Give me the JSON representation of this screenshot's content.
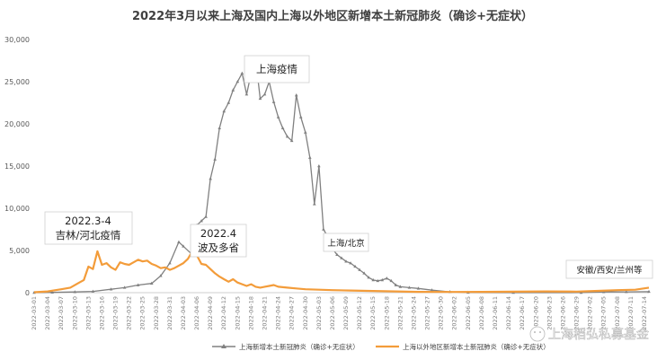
{
  "chart_data": {
    "type": "line",
    "title": "2022年3月以来上海及国内上海以外地区新增本土新冠肺炎（确诊+无症状）",
    "ylim": [
      0,
      30000
    ],
    "yticks": [
      0,
      5000,
      10000,
      15000,
      20000,
      25000,
      30000
    ],
    "ytick_labels": [
      "0",
      "5,000",
      "10,000",
      "15,000",
      "20,000",
      "25,000",
      "30,000"
    ],
    "xtick_labels": [
      "2022-03-01",
      "2022-03-04",
      "2022-03-07",
      "2022-03-10",
      "2022-03-13",
      "2022-03-16",
      "2022-03-19",
      "2022-03-22",
      "2022-03-25",
      "2022-03-28",
      "2022-03-31",
      "2022-04-03",
      "2022-04-06",
      "2022-04-09",
      "2022-04-12",
      "2022-04-15",
      "2022-04-18",
      "2022-04-21",
      "2022-04-24",
      "2022-04-27",
      "2022-04-30",
      "2022-05-03",
      "2022-05-06",
      "2022-05-09",
      "2022-05-12",
      "2022-05-15",
      "2022-05-18",
      "2022-05-21",
      "2022-05-24",
      "2022-05-27",
      "2022-05-30",
      "2022-06-02",
      "2022-06-05",
      "2022-06-08",
      "2022-06-11",
      "2022-06-14",
      "2022-06-17",
      "2022-06-20",
      "2022-06-23",
      "2022-06-26",
      "2022-06-29",
      "2022-07-02",
      "2022-07-05",
      "2022-07-08",
      "2022-07-11",
      "2022-07-14"
    ],
    "x_start": "2022-03-01",
    "x_end": "2022-07-15",
    "grid": false,
    "legend_position": "bottom",
    "series": [
      {
        "name": "上海新增本土新冠肺炎（确诊+无症状）",
        "color": "#808080",
        "points": [
          [
            "2022-03-01",
            5
          ],
          [
            "2022-03-05",
            30
          ],
          [
            "2022-03-10",
            80
          ],
          [
            "2022-03-14",
            150
          ],
          [
            "2022-03-18",
            400
          ],
          [
            "2022-03-21",
            600
          ],
          [
            "2022-03-24",
            900
          ],
          [
            "2022-03-27",
            1100
          ],
          [
            "2022-03-29",
            2000
          ],
          [
            "2022-03-31",
            3500
          ],
          [
            "2022-04-02",
            6000
          ],
          [
            "2022-04-03",
            5500
          ],
          [
            "2022-04-05",
            4500
          ],
          [
            "2022-04-06",
            8000
          ],
          [
            "2022-04-07",
            8500
          ],
          [
            "2022-04-08",
            9000
          ],
          [
            "2022-04-09",
            13500
          ],
          [
            "2022-04-10",
            15800
          ],
          [
            "2022-04-11",
            19500
          ],
          [
            "2022-04-12",
            21500
          ],
          [
            "2022-04-13",
            22500
          ],
          [
            "2022-04-14",
            24000
          ],
          [
            "2022-04-15",
            25000
          ],
          [
            "2022-04-16",
            26000
          ],
          [
            "2022-04-17",
            23500
          ],
          [
            "2022-04-18",
            26000
          ],
          [
            "2022-04-19",
            27700
          ],
          [
            "2022-04-20",
            23000
          ],
          [
            "2022-04-21",
            23500
          ],
          [
            "2022-04-22",
            25000
          ],
          [
            "2022-04-23",
            22600
          ],
          [
            "2022-04-24",
            20800
          ],
          [
            "2022-04-25",
            19500
          ],
          [
            "2022-04-26",
            18500
          ],
          [
            "2022-04-27",
            18000
          ],
          [
            "2022-04-28",
            23400
          ],
          [
            "2022-04-29",
            20800
          ],
          [
            "2022-04-30",
            19000
          ],
          [
            "2022-05-01",
            16000
          ],
          [
            "2022-05-02",
            10500
          ],
          [
            "2022-05-03",
            15000
          ],
          [
            "2022-05-04",
            7500
          ],
          [
            "2022-05-05",
            6600
          ],
          [
            "2022-05-06",
            5200
          ],
          [
            "2022-05-07",
            4500
          ],
          [
            "2022-05-08",
            4100
          ],
          [
            "2022-05-09",
            3700
          ],
          [
            "2022-05-10",
            3500
          ],
          [
            "2022-05-11",
            3100
          ],
          [
            "2022-05-12",
            2700
          ],
          [
            "2022-05-13",
            2300
          ],
          [
            "2022-05-14",
            1800
          ],
          [
            "2022-05-15",
            1500
          ],
          [
            "2022-05-16",
            1400
          ],
          [
            "2022-05-17",
            1500
          ],
          [
            "2022-05-18",
            1700
          ],
          [
            "2022-05-19",
            1400
          ],
          [
            "2022-05-20",
            900
          ],
          [
            "2022-05-21",
            700
          ],
          [
            "2022-05-23",
            600
          ],
          [
            "2022-05-25",
            500
          ],
          [
            "2022-05-28",
            300
          ],
          [
            "2022-06-01",
            100
          ],
          [
            "2022-06-05",
            20
          ],
          [
            "2022-06-15",
            5
          ],
          [
            "2022-06-30",
            10
          ],
          [
            "2022-07-05",
            80
          ],
          [
            "2022-07-10",
            100
          ],
          [
            "2022-07-15",
            120
          ]
        ]
      },
      {
        "name": "上海以外地区新增本土新冠肺炎（确诊+无症状）",
        "color": "#f39c3a",
        "points": [
          [
            "2022-03-01",
            50
          ],
          [
            "2022-03-04",
            150
          ],
          [
            "2022-03-07",
            400
          ],
          [
            "2022-03-09",
            600
          ],
          [
            "2022-03-11",
            1200
          ],
          [
            "2022-03-12",
            1500
          ],
          [
            "2022-03-13",
            3100
          ],
          [
            "2022-03-14",
            2800
          ],
          [
            "2022-03-15",
            4900
          ],
          [
            "2022-03-16",
            3300
          ],
          [
            "2022-03-17",
            3500
          ],
          [
            "2022-03-18",
            3000
          ],
          [
            "2022-03-19",
            2700
          ],
          [
            "2022-03-20",
            3600
          ],
          [
            "2022-03-21",
            3400
          ],
          [
            "2022-03-22",
            3300
          ],
          [
            "2022-03-23",
            3600
          ],
          [
            "2022-03-24",
            3900
          ],
          [
            "2022-03-25",
            3700
          ],
          [
            "2022-03-26",
            3800
          ],
          [
            "2022-03-27",
            3400
          ],
          [
            "2022-03-28",
            3200
          ],
          [
            "2022-03-29",
            2900
          ],
          [
            "2022-03-30",
            3000
          ],
          [
            "2022-03-31",
            2700
          ],
          [
            "2022-04-01",
            2900
          ],
          [
            "2022-04-02",
            3200
          ],
          [
            "2022-04-03",
            3500
          ],
          [
            "2022-04-04",
            4000
          ],
          [
            "2022-04-05",
            4900
          ],
          [
            "2022-04-06",
            4400
          ],
          [
            "2022-04-07",
            3400
          ],
          [
            "2022-04-08",
            3300
          ],
          [
            "2022-04-09",
            2800
          ],
          [
            "2022-04-10",
            2300
          ],
          [
            "2022-04-11",
            1900
          ],
          [
            "2022-04-12",
            1600
          ],
          [
            "2022-04-13",
            1300
          ],
          [
            "2022-04-14",
            1600
          ],
          [
            "2022-04-15",
            1200
          ],
          [
            "2022-04-16",
            1000
          ],
          [
            "2022-04-17",
            800
          ],
          [
            "2022-04-18",
            1000
          ],
          [
            "2022-04-19",
            700
          ],
          [
            "2022-04-20",
            600
          ],
          [
            "2022-04-21",
            700
          ],
          [
            "2022-04-22",
            800
          ],
          [
            "2022-04-23",
            900
          ],
          [
            "2022-04-24",
            700
          ],
          [
            "2022-04-26",
            600
          ],
          [
            "2022-04-28",
            500
          ],
          [
            "2022-04-30",
            400
          ],
          [
            "2022-05-03",
            350
          ],
          [
            "2022-05-06",
            300
          ],
          [
            "2022-05-10",
            250
          ],
          [
            "2022-05-15",
            200
          ],
          [
            "2022-05-20",
            150
          ],
          [
            "2022-05-25",
            100
          ],
          [
            "2022-06-01",
            80
          ],
          [
            "2022-06-08",
            100
          ],
          [
            "2022-06-15",
            120
          ],
          [
            "2022-06-22",
            150
          ],
          [
            "2022-06-29",
            130
          ],
          [
            "2022-07-03",
            200
          ],
          [
            "2022-07-08",
            300
          ],
          [
            "2022-07-12",
            350
          ],
          [
            "2022-07-15",
            600
          ]
        ]
      }
    ],
    "annotations": [
      {
        "id": "jilin",
        "lines": [
          "2022.3-4",
          "吉林/河北疫情"
        ]
      },
      {
        "id": "spread",
        "lines": [
          "2022.4",
          "波及多省"
        ]
      },
      {
        "id": "shanghai",
        "lines": [
          "上海疫情"
        ]
      },
      {
        "id": "shbj",
        "lines": [
          "上海/北京"
        ]
      },
      {
        "id": "anhui",
        "lines": [
          "安徽/西安/兰州等"
        ]
      }
    ]
  },
  "watermark": "上海稻弘私募基金"
}
